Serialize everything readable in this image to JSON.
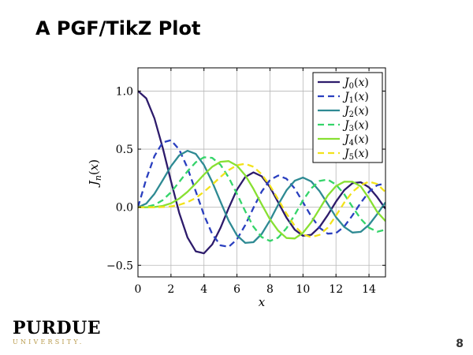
{
  "slide": {
    "title": "A PGF/TikZ Plot",
    "page_number": "8",
    "logo": {
      "wordmark": "PURDUE",
      "subtitle": "UNIVERSITY."
    }
  },
  "chart_data": {
    "type": "line",
    "xlabel": "x",
    "ylabel": "J_n(x)",
    "xlim": [
      0,
      15
    ],
    "ylim": [
      -0.6,
      1.2
    ],
    "xticks": [
      0,
      2,
      4,
      6,
      8,
      10,
      12,
      14
    ],
    "yticks": [
      -0.5,
      0.0,
      0.5,
      1.0
    ],
    "ytick_labels": [
      "−0.5",
      "0.0",
      "0.5",
      "1.0"
    ],
    "grid": true,
    "legend_position": "top-right",
    "x": [
      0,
      0.5,
      1,
      1.5,
      2,
      2.5,
      3,
      3.5,
      4,
      4.5,
      5,
      5.5,
      6,
      6.5,
      7,
      7.5,
      8,
      8.5,
      9,
      9.5,
      10,
      10.5,
      11,
      11.5,
      12,
      12.5,
      13,
      13.5,
      14,
      14.5,
      15
    ],
    "series": [
      {
        "name": "J_0(x)",
        "sub": "0",
        "color": "#2d1b6b",
        "dashed": false,
        "values": [
          1.0,
          0.938,
          0.765,
          0.512,
          0.224,
          -0.048,
          -0.26,
          -0.38,
          -0.397,
          -0.321,
          -0.178,
          -0.007,
          0.151,
          0.26,
          0.3,
          0.266,
          0.172,
          0.042,
          -0.09,
          -0.194,
          -0.246,
          -0.237,
          -0.171,
          -0.068,
          0.048,
          0.147,
          0.207,
          0.215,
          0.171,
          0.087,
          -0.014
        ]
      },
      {
        "name": "J_1(x)",
        "sub": "1",
        "color": "#2a3fbf",
        "dashed": true,
        "values": [
          0.0,
          0.242,
          0.44,
          0.558,
          0.577,
          0.497,
          0.339,
          0.137,
          -0.066,
          -0.231,
          -0.328,
          -0.341,
          -0.277,
          -0.154,
          -0.005,
          0.135,
          0.235,
          0.273,
          0.245,
          0.161,
          0.043,
          -0.079,
          -0.177,
          -0.228,
          -0.223,
          -0.166,
          -0.07,
          0.038,
          0.133,
          0.19,
          0.205
        ]
      },
      {
        "name": "J_2(x)",
        "sub": "2",
        "color": "#2e8a93",
        "dashed": false,
        "values": [
          0.0,
          0.031,
          0.115,
          0.232,
          0.353,
          0.446,
          0.486,
          0.459,
          0.364,
          0.218,
          0.047,
          -0.117,
          -0.243,
          -0.307,
          -0.301,
          -0.23,
          -0.113,
          0.022,
          0.145,
          0.228,
          0.255,
          0.222,
          0.139,
          0.028,
          -0.085,
          -0.17,
          -0.218,
          -0.212,
          -0.152,
          -0.059,
          0.042
        ]
      },
      {
        "name": "J_3(x)",
        "sub": "3",
        "color": "#35d46a",
        "dashed": true,
        "values": [
          0.0,
          0.003,
          0.02,
          0.061,
          0.129,
          0.217,
          0.309,
          0.387,
          0.43,
          0.425,
          0.365,
          0.256,
          0.115,
          -0.035,
          -0.168,
          -0.258,
          -0.291,
          -0.262,
          -0.181,
          -0.065,
          0.058,
          0.162,
          0.226,
          0.238,
          0.195,
          0.111,
          0.003,
          -0.1,
          -0.177,
          -0.211,
          -0.194
        ]
      },
      {
        "name": "J_4(x)",
        "sub": "4",
        "color": "#88e032",
        "dashed": false,
        "values": [
          0.0,
          0.0,
          0.002,
          0.011,
          0.034,
          0.074,
          0.132,
          0.204,
          0.281,
          0.348,
          0.391,
          0.397,
          0.358,
          0.275,
          0.158,
          0.024,
          -0.105,
          -0.202,
          -0.265,
          -0.269,
          -0.22,
          -0.13,
          -0.015,
          0.1,
          0.182,
          0.22,
          0.219,
          0.18,
          0.076,
          -0.04,
          -0.119
        ]
      },
      {
        "name": "J_5(x)",
        "sub": "5",
        "color": "#f2e21b",
        "dashed": true,
        "values": [
          0.0,
          0.0,
          0.0,
          0.002,
          0.007,
          0.02,
          0.043,
          0.08,
          0.132,
          0.194,
          0.261,
          0.32,
          0.362,
          0.374,
          0.348,
          0.283,
          0.186,
          0.067,
          -0.055,
          -0.161,
          -0.234,
          -0.258,
          -0.238,
          -0.176,
          -0.073,
          0.04,
          0.132,
          0.19,
          0.22,
          0.2,
          0.13
        ]
      }
    ]
  }
}
